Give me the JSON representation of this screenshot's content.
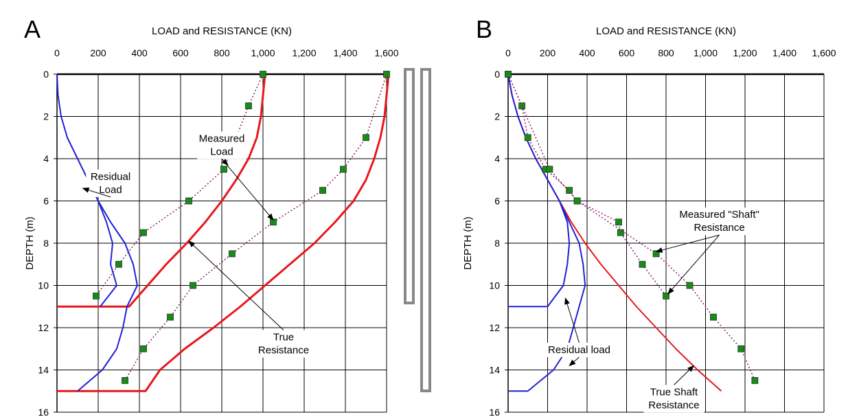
{
  "chart_data": [
    {
      "type": "line",
      "panel_label": "A",
      "xlabel": "LOAD and RESISTANCE  (KN)",
      "ylabel": "DEPTH  (m)",
      "xlim": [
        0,
        1600
      ],
      "ylim": [
        0,
        16
      ],
      "y_inverted": true,
      "x_axis_position": "top",
      "grid": true,
      "xticks": [
        0,
        200,
        400,
        600,
        800,
        1000,
        1200,
        1400,
        1600
      ],
      "xtick_labels": [
        "0",
        "200",
        "400",
        "600",
        "800",
        "1,000",
        "1,200",
        "1,400",
        "1,600"
      ],
      "yticks": [
        0,
        2,
        4,
        6,
        8,
        10,
        12,
        14,
        16
      ],
      "ytick_labels": [
        "0",
        "2",
        "4",
        "6",
        "8",
        "10",
        "12",
        "14",
        "16"
      ],
      "series": [
        {
          "kind": "true_resistance",
          "color": "#e8161b",
          "style": "solid",
          "width": 3,
          "points": [
            [
              1010,
              0
            ],
            [
              1000,
              1
            ],
            [
              990,
              2
            ],
            [
              970,
              3
            ],
            [
              930,
              4
            ],
            [
              870,
              5
            ],
            [
              800,
              6
            ],
            [
              720,
              7
            ],
            [
              630,
              8
            ],
            [
              530,
              9
            ],
            [
              440,
              10
            ],
            [
              350,
              11
            ],
            [
              0,
              11
            ]
          ]
        },
        {
          "kind": "true_resistance",
          "color": "#e8161b",
          "style": "solid",
          "width": 3,
          "points": [
            [
              1610,
              0
            ],
            [
              1600,
              1
            ],
            [
              1590,
              2
            ],
            [
              1570,
              3
            ],
            [
              1540,
              4
            ],
            [
              1500,
              5
            ],
            [
              1440,
              6
            ],
            [
              1350,
              7
            ],
            [
              1250,
              8
            ],
            [
              1130,
              9
            ],
            [
              1010,
              10
            ],
            [
              890,
              11
            ],
            [
              760,
              12
            ],
            [
              620,
              13
            ],
            [
              500,
              14
            ],
            [
              430,
              15
            ],
            [
              0,
              15
            ]
          ]
        },
        {
          "kind": "residual_load",
          "color": "#1f1fd6",
          "style": "solid",
          "width": 2,
          "points": [
            [
              0,
              0
            ],
            [
              5,
              1
            ],
            [
              20,
              2
            ],
            [
              50,
              3
            ],
            [
              100,
              4
            ],
            [
              150,
              5
            ],
            [
              200,
              6
            ],
            [
              260,
              7
            ],
            [
              330,
              8
            ],
            [
              370,
              9
            ],
            [
              390,
              10
            ],
            [
              340,
              11
            ],
            [
              320,
              12
            ],
            [
              290,
              13
            ],
            [
              220,
              14
            ],
            [
              100,
              15
            ]
          ]
        },
        {
          "kind": "residual_load",
          "color": "#1f1fd6",
          "style": "solid",
          "width": 2,
          "points": [
            [
              200,
              6
            ],
            [
              240,
              7
            ],
            [
              270,
              8
            ],
            [
              260,
              9
            ],
            [
              290,
              10
            ],
            [
              210,
              11
            ]
          ]
        },
        {
          "kind": "measured_load",
          "color": "#8a1c6b",
          "style": "dotted",
          "width": 1.5,
          "marker": "square",
          "marker_color": "#1b8a1b",
          "points": [
            [
              1000,
              0
            ],
            [
              930,
              1.5
            ],
            [
              810,
              4.5
            ],
            [
              640,
              6
            ],
            [
              420,
              7.5
            ],
            [
              300,
              9
            ],
            [
              190,
              10.5
            ]
          ]
        },
        {
          "kind": "measured_load",
          "color": "#8a1c6b",
          "style": "dotted",
          "width": 1.5,
          "marker": "square",
          "marker_color": "#1b8a1b",
          "points": [
            [
              1600,
              0
            ],
            [
              1500,
              3
            ],
            [
              1390,
              4.5
            ],
            [
              1290,
              5.5
            ],
            [
              1050,
              7
            ],
            [
              850,
              8.5
            ],
            [
              660,
              10
            ],
            [
              550,
              11.5
            ],
            [
              420,
              13
            ],
            [
              330,
              14.5
            ]
          ]
        }
      ],
      "annotations": [
        {
          "text": [
            "Measured",
            "Load"
          ],
          "x": 800,
          "y": 3.2,
          "arrows_to": [
            [
              830,
              4.3
            ],
            [
              1050,
              6.9
            ]
          ]
        },
        {
          "text": [
            "Residual",
            "Load"
          ],
          "x": 260,
          "y": 5.0,
          "arrows_to": [
            [
              125,
              5.4
            ]
          ]
        },
        {
          "text": [
            "True",
            "Resistance"
          ],
          "x": 1100,
          "y": 12.6,
          "arrows_to": [
            [
              640,
              7.9
            ]
          ]
        }
      ]
    },
    {
      "type": "line",
      "panel_label": "B",
      "xlabel": "LOAD and RESISTANCE  (KN)",
      "ylabel": "DEPTH  (m)",
      "xlim": [
        0,
        1600
      ],
      "ylim": [
        0,
        16
      ],
      "y_inverted": true,
      "x_axis_position": "top",
      "grid": true,
      "xticks": [
        0,
        200,
        400,
        600,
        800,
        1000,
        1200,
        1400,
        1600
      ],
      "xtick_labels": [
        "0",
        "200",
        "400",
        "600",
        "800",
        "1,000",
        "1,200",
        "1,400",
        "1,600"
      ],
      "yticks": [
        0,
        2,
        4,
        6,
        8,
        10,
        12,
        14,
        16
      ],
      "ytick_labels": [
        "0",
        "2",
        "4",
        "6",
        "8",
        "10",
        "12",
        "14",
        "16"
      ],
      "series": [
        {
          "kind": "true_shaft_resistance",
          "color": "#e8161b",
          "style": "solid",
          "width": 2,
          "points": [
            [
              0,
              0
            ],
            [
              20,
              1
            ],
            [
              50,
              2
            ],
            [
              90,
              3
            ],
            [
              140,
              4
            ],
            [
              200,
              5
            ],
            [
              260,
              6
            ],
            [
              320,
              7
            ],
            [
              390,
              8
            ],
            [
              470,
              9
            ],
            [
              560,
              10
            ],
            [
              650,
              11
            ],
            [
              750,
              12
            ],
            [
              850,
              13
            ],
            [
              960,
              14
            ],
            [
              1080,
              15
            ]
          ]
        },
        {
          "kind": "residual_load",
          "color": "#1f1fd6",
          "style": "solid",
          "width": 2,
          "points": [
            [
              0,
              0
            ],
            [
              20,
              1
            ],
            [
              50,
              2
            ],
            [
              90,
              3
            ],
            [
              140,
              4
            ],
            [
              200,
              5
            ],
            [
              260,
              6
            ],
            [
              300,
              7
            ],
            [
              310,
              8
            ],
            [
              300,
              9
            ],
            [
              280,
              10
            ],
            [
              200,
              11
            ],
            [
              0,
              11
            ]
          ]
        },
        {
          "kind": "residual_load",
          "color": "#1f1fd6",
          "style": "solid",
          "width": 2,
          "points": [
            [
              260,
              6
            ],
            [
              310,
              7
            ],
            [
              360,
              8
            ],
            [
              380,
              9
            ],
            [
              390,
              10
            ],
            [
              360,
              11
            ],
            [
              330,
              12
            ],
            [
              300,
              13
            ],
            [
              230,
              14
            ],
            [
              100,
              15
            ],
            [
              0,
              15
            ]
          ]
        },
        {
          "kind": "measured_shaft",
          "color": "#8a1c6b",
          "style": "dotted",
          "width": 1.5,
          "marker": "square",
          "marker_color": "#1b8a1b",
          "points": [
            [
              0,
              0
            ],
            [
              70,
              1.5
            ],
            [
              100,
              3
            ],
            [
              190,
              4.5
            ],
            [
              310,
              5.5
            ],
            [
              350,
              6
            ],
            [
              560,
              7
            ],
            [
              570,
              7.5
            ],
            [
              680,
              9
            ],
            [
              800,
              10.5
            ]
          ]
        },
        {
          "kind": "measured_shaft",
          "color": "#8a1c6b",
          "style": "dotted",
          "width": 1.5,
          "marker": "square",
          "marker_color": "#1b8a1b",
          "points": [
            [
              0,
              0
            ],
            [
              210,
              4.5
            ],
            [
              350,
              6
            ],
            [
              750,
              8.5
            ],
            [
              920,
              10
            ],
            [
              1040,
              11.5
            ],
            [
              1180,
              13
            ],
            [
              1250,
              14.5
            ]
          ]
        }
      ],
      "annotations": [
        {
          "text": [
            "Measured \"Shaft\"",
            "Resistance"
          ],
          "x": 1070,
          "y": 6.8,
          "arrows_to": [
            [
              750,
              8.4
            ],
            [
              810,
              10.4
            ]
          ]
        },
        {
          "text": [
            "Residual load"
          ],
          "x": 360,
          "y": 13.2,
          "arrows_to": [
            [
              290,
              10.6
            ],
            [
              310,
              13.8
            ]
          ]
        },
        {
          "text": [
            "True Shaft",
            "Resistance"
          ],
          "x": 840,
          "y": 15.2,
          "arrows_to": [
            [
              940,
              13.8
            ]
          ]
        }
      ]
    }
  ]
}
